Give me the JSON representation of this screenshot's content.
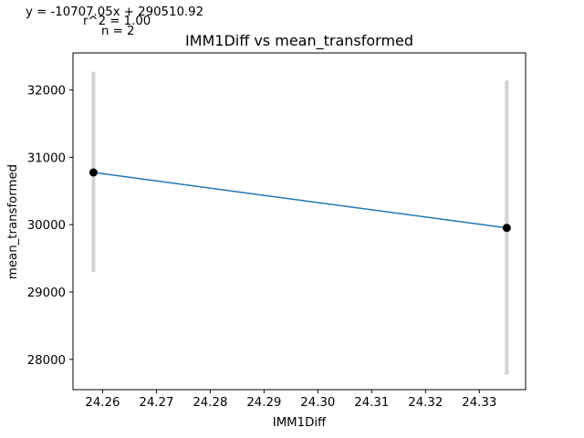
{
  "chart_data": {
    "type": "line",
    "title": "IMM1Diff vs mean_transformed",
    "xlabel": "IMM1Diff",
    "ylabel": "mean_transformed",
    "xlim": [
      24.2545,
      24.3386
    ],
    "ylim": [
      27550,
      32550
    ],
    "x_ticks": [
      "24.26",
      "24.27",
      "24.28",
      "24.29",
      "24.30",
      "24.31",
      "24.32",
      "24.33"
    ],
    "x_tick_values": [
      24.26,
      24.27,
      24.28,
      24.29,
      24.3,
      24.31,
      24.32,
      24.33
    ],
    "y_ticks": [
      "28000",
      "29000",
      "30000",
      "31000",
      "32000"
    ],
    "y_tick_values": [
      28000,
      29000,
      30000,
      31000,
      32000
    ],
    "grid": false,
    "annotations": [
      "y = -10707.05x + 290510.92",
      "r^2 = 1.00",
      "n = 2"
    ],
    "series": [
      {
        "x": [
          24.2583,
          24.3351
        ],
        "y": [
          30775,
          29952
        ],
        "error_low": [
          29300,
          27770
        ],
        "error_high": [
          32270,
          32140
        ],
        "line_color": "#1f77b4",
        "marker_color": "#000000",
        "errorbar_color": "#d3d3d3"
      }
    ]
  }
}
